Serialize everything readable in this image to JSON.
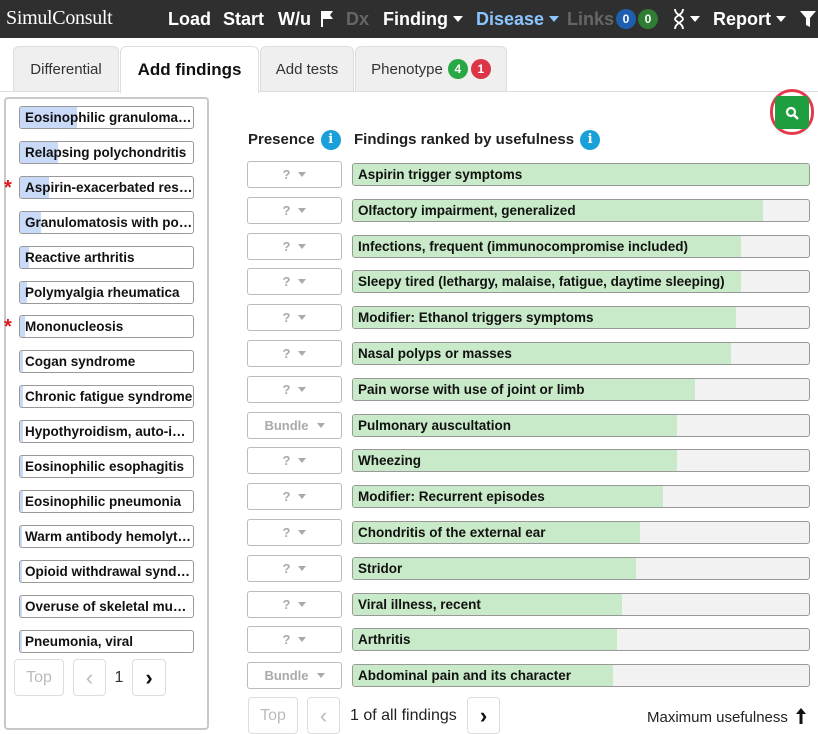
{
  "topbar": {
    "logo": "SimulConsult",
    "load": "Load",
    "start": "Start",
    "wu": "W/u",
    "dx": "Dx",
    "finding": "Finding",
    "disease": "Disease",
    "links": "Links",
    "links_count_1": "0",
    "links_count_2": "0",
    "report": "Report"
  },
  "tabs": [
    {
      "label": "Differential"
    },
    {
      "label": "Add findings"
    },
    {
      "label": "Add tests"
    },
    {
      "label": "Phenotype",
      "badge_green": "4",
      "badge_red": "1"
    }
  ],
  "differential": [
    {
      "label": "Eosinophilic granulomatosis with polyangiitis",
      "starred": false,
      "fill": 0.33
    },
    {
      "label": "Relapsing polychondritis",
      "starred": false,
      "fill": 0.22
    },
    {
      "label": "Aspirin-exacerbated respiratory disease",
      "starred": true,
      "fill": 0.17
    },
    {
      "label": "Granulomatosis with polyangiitis",
      "starred": false,
      "fill": 0.12
    },
    {
      "label": "Reactive arthritis",
      "starred": false,
      "fill": 0.05
    },
    {
      "label": "Polymyalgia rheumatica",
      "starred": false,
      "fill": 0.04
    },
    {
      "label": "Mononucleosis",
      "starred": true,
      "fill": 0.03
    },
    {
      "label": "Cogan syndrome",
      "starred": false,
      "fill": 0.02
    },
    {
      "label": "Chronic fatigue syndrome",
      "starred": false,
      "fill": 0.02
    },
    {
      "label": "Hypothyroidism, auto-immune",
      "starred": false,
      "fill": 0.02
    },
    {
      "label": "Eosinophilic esophagitis",
      "starred": false,
      "fill": 0.02
    },
    {
      "label": "Eosinophilic pneumonia",
      "starred": false,
      "fill": 0.02
    },
    {
      "label": "Warm antibody hemolytic anemia",
      "starred": false,
      "fill": 0.01
    },
    {
      "label": "Opioid withdrawal syndrome",
      "starred": false,
      "fill": 0.01
    },
    {
      "label": "Overuse of skeletal muscle",
      "starred": false,
      "fill": 0.01
    },
    {
      "label": "Pneumonia, viral",
      "starred": false,
      "fill": 0.01
    }
  ],
  "left_pager": {
    "top": "Top",
    "prev": "‹",
    "page": "1",
    "next": "›"
  },
  "headers": {
    "presence": "Presence",
    "findings": "Findings ranked by usefulness",
    "info": "i"
  },
  "findings": [
    {
      "presence": "?",
      "label": "Aspirin trigger symptoms",
      "usefulness": 1.0
    },
    {
      "presence": "?",
      "label": "Olfactory impairment, generalized",
      "usefulness": 0.9
    },
    {
      "presence": "?",
      "label": "Infections, frequent (immunocompromise included)",
      "usefulness": 0.85
    },
    {
      "presence": "?",
      "label": "Sleepy tired (lethargy, malaise, fatigue, daytime sleeping)",
      "usefulness": 0.85
    },
    {
      "presence": "?",
      "label": "Modifier: Ethanol triggers symptoms",
      "usefulness": 0.84
    },
    {
      "presence": "?",
      "label": "Nasal polyps or masses",
      "usefulness": 0.83
    },
    {
      "presence": "?",
      "label": "Pain worse with use of joint or limb",
      "usefulness": 0.75
    },
    {
      "presence": "Bundle",
      "label": "Pulmonary auscultation",
      "usefulness": 0.71
    },
    {
      "presence": "?",
      "label": "Wheezing",
      "usefulness": 0.71
    },
    {
      "presence": "?",
      "label": "Modifier: Recurrent episodes",
      "usefulness": 0.68
    },
    {
      "presence": "?",
      "label": "Chondritis of the external ear",
      "usefulness": 0.63
    },
    {
      "presence": "?",
      "label": "Stridor",
      "usefulness": 0.62
    },
    {
      "presence": "?",
      "label": "Viral illness, recent",
      "usefulness": 0.59
    },
    {
      "presence": "?",
      "label": "Arthritis",
      "usefulness": 0.58
    },
    {
      "presence": "Bundle",
      "label": "Abdominal pain and its character",
      "usefulness": 0.57
    }
  ],
  "findings_pager": {
    "top": "Top",
    "prev": "‹",
    "status": "1 of all findings",
    "next": "›",
    "sort": "Maximum usefulness"
  },
  "colors": {
    "topbar": "#2f2f2f",
    "dx_fill": "#c9daf8",
    "finding_fill": "#c8eac8",
    "search": "#1e9e3e",
    "highlight": "#e33b4b",
    "info": "#1aa0d8"
  }
}
